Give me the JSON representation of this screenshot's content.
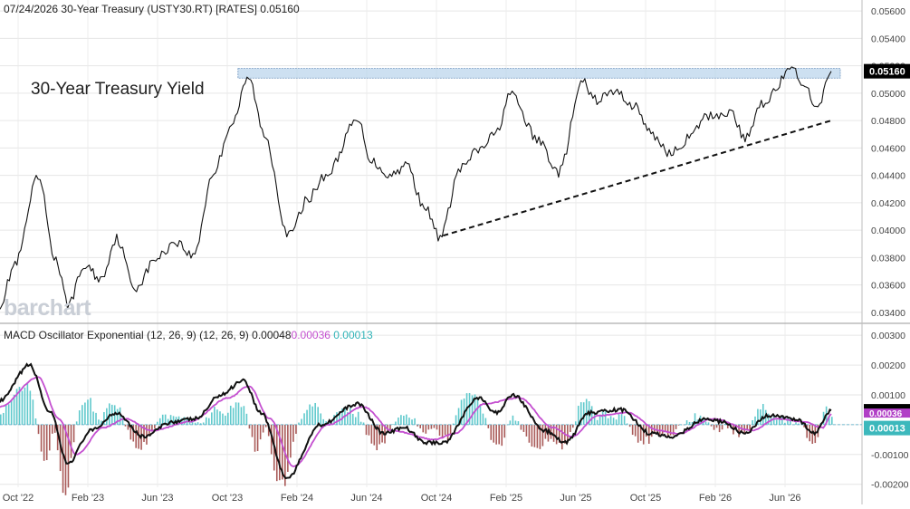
{
  "header": {
    "date": "07/24/2026",
    "symbol_title": "30-Year Treasury (USTY30.RT) [RATES]",
    "last_value": "0.05160"
  },
  "annotation": {
    "title": "30-Year Treasury Yield"
  },
  "logo_text": "barchart",
  "colors": {
    "price_line": "#111111",
    "macd_line": "#111111",
    "signal_line": "#c44fd0",
    "hist_pos": "#5fc9cc",
    "hist_neg": "#a95a58",
    "resistance_fill": "#bcd5ec",
    "support_line": "#111111",
    "price_label_bg": "#000000",
    "signal_label_bg": "#b13fc6",
    "hist_label_bg": "#3cb8bc"
  },
  "macd_header": {
    "name": "MACD Oscillator Exponential (12, 26, 9)",
    "params": "(12, 26, 9)",
    "macd_value": "0.00048",
    "signal_value": "0.00036",
    "hist_value": "0.00013"
  },
  "x_axis": {
    "labels": [
      "Oct '22",
      "Feb '23",
      "Jun '23",
      "Oct '23",
      "Feb '24",
      "Jun '24",
      "Oct '24",
      "Feb '25",
      "Jun '25",
      "Oct '25",
      "Feb '26",
      "Jun '26"
    ]
  },
  "chart_data": [
    {
      "type": "line",
      "name": "30-Year Treasury Yield",
      "x_range": [
        "2022-08-15",
        "2026-07-24"
      ],
      "y_axis": {
        "ylim": [
          0.0332,
          0.0568
        ],
        "ticks": [
          "0.05600",
          "0.05400",
          "0.05200",
          "0.05000",
          "0.04800",
          "0.04600",
          "0.04400",
          "0.04200",
          "0.04000",
          "0.03800",
          "0.03600",
          "0.03400"
        ],
        "last_label": "0.05160"
      },
      "anchors": [
        [
          "2022-08-15",
          0.0346
        ],
        [
          "2022-09-10",
          0.0375
        ],
        [
          "2022-10-20",
          0.0438
        ],
        [
          "2022-11-20",
          0.0378
        ],
        [
          "2022-12-10",
          0.0346
        ],
        [
          "2023-01-10",
          0.0374
        ],
        [
          "2023-02-05",
          0.0364
        ],
        [
          "2023-03-05",
          0.0394
        ],
        [
          "2023-04-05",
          0.0358
        ],
        [
          "2023-05-15",
          0.038
        ],
        [
          "2023-06-15",
          0.0392
        ],
        [
          "2023-07-15",
          0.0381
        ],
        [
          "2023-08-20",
          0.0442
        ],
        [
          "2023-09-20",
          0.0478
        ],
        [
          "2023-10-20",
          0.0511
        ],
        [
          "2023-11-15",
          0.047
        ],
        [
          "2023-12-28",
          0.0396
        ],
        [
          "2024-02-01",
          0.0424
        ],
        [
          "2024-03-01",
          0.044
        ],
        [
          "2024-04-25",
          0.048
        ],
        [
          "2024-05-20",
          0.045
        ],
        [
          "2024-06-20",
          0.044
        ],
        [
          "2024-07-20",
          0.0448
        ],
        [
          "2024-08-15",
          0.042
        ],
        [
          "2024-09-15",
          0.0395
        ],
        [
          "2024-10-20",
          0.0445
        ],
        [
          "2024-11-20",
          0.0458
        ],
        [
          "2024-12-20",
          0.047
        ],
        [
          "2025-01-14",
          0.0499
        ],
        [
          "2025-03-05",
          0.0465
        ],
        [
          "2025-04-08",
          0.0442
        ],
        [
          "2025-05-20",
          0.0508
        ],
        [
          "2025-06-10",
          0.0495
        ],
        [
          "2025-07-15",
          0.0501
        ],
        [
          "2025-08-20",
          0.049
        ],
        [
          "2025-09-15",
          0.047
        ],
        [
          "2025-10-20",
          0.0456
        ],
        [
          "2025-11-20",
          0.0467
        ],
        [
          "2025-12-20",
          0.0483
        ],
        [
          "2026-02-01",
          0.0486
        ],
        [
          "2026-02-25",
          0.0466
        ],
        [
          "2026-03-25",
          0.0493
        ],
        [
          "2026-05-20",
          0.0517
        ],
        [
          "2026-06-15",
          0.05
        ],
        [
          "2026-07-01",
          0.0488
        ],
        [
          "2026-07-24",
          0.0516
        ]
      ],
      "resistance_zone": {
        "x": [
          "2023-10-01",
          "2026-07-24"
        ],
        "y": [
          0.0511,
          0.0518
        ]
      },
      "support_trend": {
        "from": [
          "2024-09-20",
          0.0396
        ],
        "to": [
          "2026-07-24",
          0.048
        ]
      }
    },
    {
      "type": "line",
      "name": "MACD Oscillator Exponential (12, 26, 9)",
      "y_axis": {
        "ylim": [
          -0.0021,
          0.0034
        ],
        "ticks": [
          "0.00300",
          "0.00200",
          "0.00100",
          "0.00000",
          "-0.00100",
          "-0.00200"
        ]
      },
      "series": [
        {
          "name": "MACD",
          "value": "0.00048"
        },
        {
          "name": "Signal",
          "value": "0.00036"
        },
        {
          "name": "Histogram",
          "value": "0.00013"
        }
      ],
      "macd_anchors": [
        [
          "2022-08-15",
          0.0008
        ],
        [
          "2022-10-05",
          0.002
        ],
        [
          "2022-11-10",
          0.0004
        ],
        [
          "2022-12-10",
          -0.0013
        ],
        [
          "2023-01-20",
          -0.0002
        ],
        [
          "2023-03-05",
          0.0004
        ],
        [
          "2023-04-20",
          -0.0004
        ],
        [
          "2023-06-10",
          0.0001
        ],
        [
          "2023-07-20",
          0.0002
        ],
        [
          "2023-09-01",
          0.001
        ],
        [
          "2023-10-10",
          0.0015
        ],
        [
          "2023-11-10",
          0.0004
        ],
        [
          "2023-12-25",
          -0.0018
        ],
        [
          "2024-02-20",
          0.0
        ],
        [
          "2024-04-25",
          0.0007
        ],
        [
          "2024-06-10",
          -0.0003
        ],
        [
          "2024-07-15",
          -0.0001
        ],
        [
          "2024-08-20",
          -0.0006
        ],
        [
          "2024-09-20",
          -0.0006
        ],
        [
          "2024-11-20",
          0.0009
        ],
        [
          "2024-12-20",
          0.0004
        ],
        [
          "2025-01-20",
          0.001
        ],
        [
          "2025-03-15",
          -0.0002
        ],
        [
          "2025-04-20",
          -0.0006
        ],
        [
          "2025-06-01",
          0.0004
        ],
        [
          "2025-07-25",
          0.0005
        ],
        [
          "2025-09-15",
          -0.0003
        ],
        [
          "2025-10-20",
          -0.0004
        ],
        [
          "2025-12-20",
          0.0002
        ],
        [
          "2026-01-15",
          0.0001
        ],
        [
          "2026-02-25",
          -0.0003
        ],
        [
          "2026-04-05",
          0.0003
        ],
        [
          "2026-05-25",
          0.0002
        ],
        [
          "2026-06-25",
          -0.0003
        ],
        [
          "2026-07-24",
          0.00048
        ]
      ],
      "signal_anchors": [
        [
          "2022-08-15",
          0.0006
        ],
        [
          "2022-10-20",
          0.0016
        ],
        [
          "2022-11-25",
          0.0002
        ],
        [
          "2022-12-25",
          -0.001
        ],
        [
          "2023-02-10",
          -0.0001
        ],
        [
          "2023-03-20",
          0.0002
        ],
        [
          "2023-05-05",
          -0.0002
        ],
        [
          "2023-07-10",
          0.0001
        ],
        [
          "2023-09-15",
          0.0009
        ],
        [
          "2023-10-20",
          0.0013
        ],
        [
          "2023-11-25",
          0.0002
        ],
        [
          "2024-01-05",
          -0.0014
        ],
        [
          "2024-03-05",
          0.0
        ],
        [
          "2024-05-05",
          0.0006
        ],
        [
          "2024-06-25",
          -0.0002
        ],
        [
          "2024-09-05",
          -0.0005
        ],
        [
          "2024-10-10",
          -0.0003
        ],
        [
          "2024-12-01",
          0.0007
        ],
        [
          "2025-01-30",
          0.0009
        ],
        [
          "2025-03-30",
          -0.0001
        ],
        [
          "2025-05-01",
          -0.0004
        ],
        [
          "2025-06-15",
          0.0003
        ],
        [
          "2025-08-05",
          0.0004
        ],
        [
          "2025-09-30",
          -0.0002
        ],
        [
          "2025-11-01",
          -0.0003
        ],
        [
          "2026-01-01",
          0.0002
        ],
        [
          "2026-03-10",
          -0.0002
        ],
        [
          "2026-04-20",
          0.0002
        ],
        [
          "2026-06-05",
          0.0001
        ],
        [
          "2026-07-10",
          -0.0001
        ],
        [
          "2026-07-24",
          0.00036
        ]
      ]
    }
  ]
}
